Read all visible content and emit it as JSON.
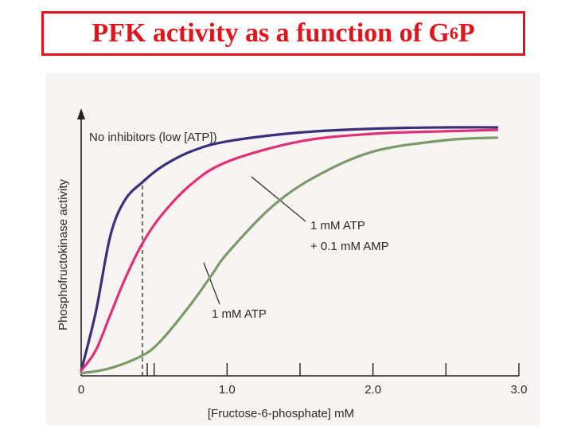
{
  "slide": {
    "title_main": "PFK activity as a function of G",
    "title_sub": "6",
    "title_tail": "P"
  },
  "colors": {
    "title": "#e0141c",
    "no_inhibitors": "#3a2f7a",
    "atp_amp": "#e0307a",
    "atp": "#7a9a6a"
  },
  "chart_data": {
    "type": "line",
    "xlabel": "[Fructose-6-phosphate] mM",
    "ylabel": "Phosphofructokinase activity",
    "xlim": [
      0,
      3.0
    ],
    "ylim": [
      0,
      1.0
    ],
    "xticks": [
      0,
      0.5,
      1.0,
      1.5,
      2.0,
      2.5,
      3.0
    ],
    "xtick_labels": [
      "0",
      "",
      "1.0",
      "",
      "2.0",
      "",
      "3.0"
    ],
    "marker_x": 0.42,
    "series": [
      {
        "name": "No inhibitors (low [ATP])",
        "color": "#3a2f7a",
        "x": [
          0,
          0.1,
          0.2,
          0.3,
          0.42,
          0.55,
          0.75,
          1.0,
          1.5,
          2.0,
          2.5,
          2.85
        ],
        "y": [
          0.02,
          0.25,
          0.55,
          0.69,
          0.76,
          0.82,
          0.88,
          0.92,
          0.955,
          0.97,
          0.975,
          0.975
        ]
      },
      {
        "name": "1 mM ATP + 0.1 mM AMP",
        "color": "#e0307a",
        "x": [
          0,
          0.1,
          0.2,
          0.3,
          0.42,
          0.55,
          0.75,
          1.0,
          1.5,
          2.0,
          2.5,
          2.85
        ],
        "y": [
          0.02,
          0.1,
          0.24,
          0.38,
          0.52,
          0.63,
          0.75,
          0.84,
          0.92,
          0.95,
          0.96,
          0.965
        ]
      },
      {
        "name": "1 mM ATP",
        "color": "#7a9a6a",
        "x": [
          0,
          0.2,
          0.42,
          0.55,
          0.75,
          0.9,
          1.0,
          1.3,
          1.6,
          2.0,
          2.5,
          2.85
        ],
        "y": [
          0.01,
          0.03,
          0.08,
          0.14,
          0.28,
          0.4,
          0.48,
          0.66,
          0.78,
          0.88,
          0.925,
          0.935
        ]
      }
    ],
    "annotations": [
      {
        "text": "No inhibitors (low [ATP])"
      },
      {
        "text": "1 mM ATP"
      },
      {
        "text": "+ 0.1 mM AMP"
      },
      {
        "text": "1 mM ATP"
      }
    ]
  }
}
